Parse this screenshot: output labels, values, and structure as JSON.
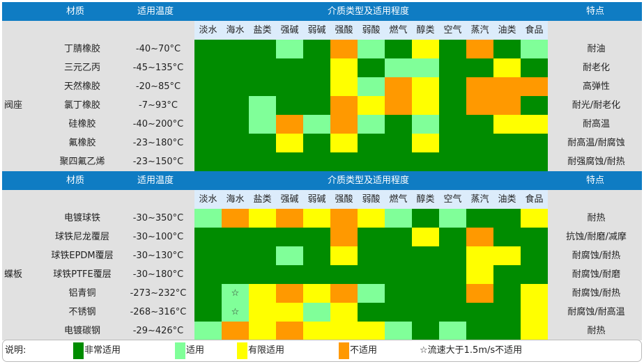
{
  "colors": {
    "header_bg": "#0f7cc3",
    "panel_bg": "#e1e1e1",
    "media_bg": "#dcecfb",
    "G": "#008c00",
    "L": "#80ff99",
    "Y": "#ffff00",
    "O": "#ff9900"
  },
  "header": {
    "material": "材质",
    "temp": "适用温度",
    "media_title": "介质类型及适用程度",
    "features": "特点"
  },
  "media": [
    "淡水",
    "海水",
    "盐类",
    "强碱",
    "弱碱",
    "强酸",
    "弱酸",
    "燃气",
    "醇类",
    "空气",
    "蒸汽",
    "油类",
    "食品"
  ],
  "sections": [
    {
      "group": "阀座",
      "rows": [
        {
          "name": "丁腈橡胶",
          "temp": "-40~70°C",
          "feature": "耐油",
          "cells": [
            "G",
            "G",
            "G",
            "L",
            "G",
            "O",
            "L",
            "G",
            "Y",
            "G",
            "O",
            "G",
            "L"
          ],
          "marks": [
            "",
            "",
            "",
            "",
            "",
            "",
            "",
            "",
            "",
            "",
            "",
            "",
            ""
          ]
        },
        {
          "name": "三元乙丙",
          "temp": "-45~135°C",
          "feature": "耐老化",
          "cells": [
            "G",
            "G",
            "G",
            "G",
            "G",
            "Y",
            "G",
            "L",
            "L",
            "G",
            "G",
            "Y",
            "G"
          ],
          "marks": [
            "",
            "",
            "",
            "",
            "",
            "",
            "",
            "",
            "",
            "",
            "",
            "",
            ""
          ]
        },
        {
          "name": "天然橡胶",
          "temp": "-20~85°C",
          "feature": "高弹性",
          "cells": [
            "G",
            "G",
            "G",
            "G",
            "G",
            "Y",
            "L",
            "O",
            "Y",
            "G",
            "O",
            "O",
            "O"
          ],
          "marks": [
            "",
            "",
            "",
            "",
            "",
            "",
            "",
            "",
            "",
            "",
            "",
            "",
            ""
          ]
        },
        {
          "name": "氯丁橡胶",
          "temp": "-7~93°C",
          "feature": "耐光/耐老化",
          "cells": [
            "G",
            "G",
            "L",
            "G",
            "G",
            "O",
            "Y",
            "O",
            "Y",
            "G",
            "O",
            "O",
            "G"
          ],
          "marks": [
            "",
            "",
            "",
            "",
            "",
            "",
            "",
            "",
            "",
            "",
            "",
            "",
            ""
          ]
        },
        {
          "name": "硅橡胶",
          "temp": "-40~200°C",
          "feature": "耐高温",
          "cells": [
            "G",
            "G",
            "L",
            "O",
            "L",
            "O",
            "L",
            "G",
            "L",
            "G",
            "G",
            "Y",
            "Y"
          ],
          "marks": [
            "",
            "",
            "",
            "",
            "",
            "",
            "",
            "",
            "",
            "",
            "",
            "",
            ""
          ]
        },
        {
          "name": "氟橡胶",
          "temp": "-23~180°C",
          "feature": "耐高温/耐腐蚀",
          "cells": [
            "G",
            "G",
            "G",
            "Y",
            "G",
            "Y",
            "G",
            "G",
            "Y",
            "G",
            "G",
            "G",
            "G"
          ],
          "marks": [
            "",
            "",
            "",
            "",
            "",
            "",
            "",
            "",
            "",
            "",
            "",
            "",
            ""
          ]
        },
        {
          "name": "聚四氟乙烯",
          "temp": "-23~150°C",
          "feature": "耐强腐蚀/耐热",
          "cells": [
            "G",
            "G",
            "G",
            "G",
            "G",
            "G",
            "G",
            "G",
            "G",
            "G",
            "G",
            "G",
            "G"
          ],
          "marks": [
            "",
            "",
            "",
            "",
            "",
            "",
            "",
            "",
            "",
            "",
            "",
            "",
            ""
          ]
        }
      ]
    },
    {
      "group": "蝶板",
      "rows": [
        {
          "name": "电镀球铁",
          "temp": "-30~350°C",
          "feature": "耐热",
          "cells": [
            "L",
            "O",
            "Y",
            "O",
            "Y",
            "O",
            "Y",
            "L",
            "G",
            "L",
            "G",
            "G",
            "Y"
          ],
          "marks": [
            "",
            "",
            "",
            "",
            "",
            "",
            "",
            "",
            "",
            "",
            "",
            "",
            ""
          ]
        },
        {
          "name": "球铁尼龙覆层",
          "temp": "-30~100°C",
          "feature": "抗蚀/耐磨/减摩",
          "cells": [
            "G",
            "G",
            "G",
            "G",
            "G",
            "O",
            "G",
            "G",
            "Y",
            "G",
            "O",
            "G",
            "G"
          ],
          "marks": [
            "",
            "",
            "",
            "",
            "",
            "",
            "",
            "",
            "",
            "",
            "",
            "",
            ""
          ]
        },
        {
          "name": "球铁EPDM覆层",
          "temp": "-30~130°C",
          "feature": "耐腐蚀/耐热",
          "cells": [
            "G",
            "G",
            "G",
            "L",
            "G",
            "Y",
            "G",
            "G",
            "G",
            "G",
            "Y",
            "Y",
            "G"
          ],
          "marks": [
            "",
            "",
            "",
            "",
            "",
            "",
            "",
            "",
            "",
            "",
            "",
            "",
            ""
          ]
        },
        {
          "name": "球铁PTFE覆层",
          "temp": "-30~180°C",
          "feature": "耐腐蚀/耐磨",
          "cells": [
            "G",
            "G",
            "G",
            "G",
            "G",
            "G",
            "G",
            "G",
            "G",
            "G",
            "Y",
            "G",
            "G"
          ],
          "marks": [
            "",
            "",
            "",
            "",
            "",
            "",
            "",
            "",
            "",
            "",
            "",
            "",
            ""
          ]
        },
        {
          "name": "铝青铜",
          "temp": "-273~232°C",
          "feature": "耐腐蚀/耐热",
          "cells": [
            "G",
            "L",
            "Y",
            "O",
            "Y",
            "O",
            "L",
            "G",
            "G",
            "G",
            "O",
            "G",
            "Y"
          ],
          "marks": [
            "",
            "☆",
            "",
            "",
            "",
            "",
            "",
            "",
            "",
            "",
            "",
            "",
            ""
          ]
        },
        {
          "name": "不锈钢",
          "temp": "-268~316°C",
          "feature": "耐腐蚀/耐高温",
          "cells": [
            "G",
            "L",
            "Y",
            "Y",
            "L",
            "Y",
            "G",
            "G",
            "G",
            "G",
            "G",
            "G",
            "Y"
          ],
          "marks": [
            "",
            "☆",
            "",
            "",
            "",
            "",
            "",
            "",
            "",
            "",
            "",
            "",
            ""
          ]
        },
        {
          "name": "电镀碳钢",
          "temp": "-29~426°C",
          "feature": "耐热",
          "cells": [
            "L",
            "O",
            "Y",
            "O",
            "Y",
            "Y",
            "Y",
            "L",
            "G",
            "L",
            "G",
            "G",
            "Y"
          ],
          "marks": [
            "",
            "",
            "",
            "",
            "",
            "",
            "",
            "",
            "",
            "",
            "",
            "",
            ""
          ]
        }
      ]
    }
  ],
  "legend": {
    "title": "说明:",
    "items": [
      {
        "key": "G",
        "label": "非常适用"
      },
      {
        "key": "L",
        "label": "适用"
      },
      {
        "key": "Y",
        "label": "有限适用"
      },
      {
        "key": "O",
        "label": "不适用"
      }
    ],
    "note": "☆流速大于1.5m/s不适用"
  }
}
